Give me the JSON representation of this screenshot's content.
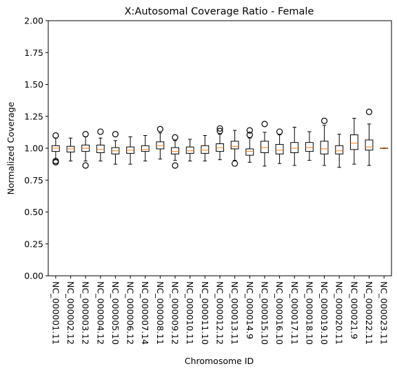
{
  "chart_data": {
    "type": "boxplot",
    "title": "X:Autosomal Coverage Ratio - Female",
    "xlabel": "Chromosome ID",
    "ylabel": "Normalized Coverage",
    "ylim": [
      0,
      2
    ],
    "yticks": [
      "0.00",
      "0.25",
      "0.50",
      "0.75",
      "1.00",
      "1.25",
      "1.50",
      "1.75",
      "2.00"
    ],
    "grid": false,
    "colors": {
      "box": "#000000",
      "median": "#ff7f0e",
      "flier": "#000000"
    },
    "categories": [
      "NC_000001.11",
      "NC_000002.12",
      "NC_000003.12",
      "NC_000004.12",
      "NC_000005.10",
      "NC_000006.12",
      "NC_000007.14",
      "NC_000008.11",
      "NC_000009.12",
      "NC_000010.11",
      "NC_000011.10",
      "NC_000012.12",
      "NC_000013.11",
      "NC_000014.9",
      "NC_000015.10",
      "NC_000016.10",
      "NC_000017.11",
      "NC_000018.10",
      "NC_000019.10",
      "NC_000020.11",
      "NC_000021.9",
      "NC_000022.11",
      "NC_000023.11"
    ],
    "boxes": [
      {
        "whislo": 0.91,
        "q1": 0.975,
        "med": 1.0,
        "q3": 1.02,
        "whishi": 1.08,
        "fliers": [
          1.1,
          0.9,
          0.89
        ]
      },
      {
        "whislo": 0.9,
        "q1": 0.97,
        "med": 0.995,
        "q3": 1.015,
        "whishi": 1.08,
        "fliers": []
      },
      {
        "whislo": 0.9,
        "q1": 0.975,
        "med": 1.0,
        "q3": 1.025,
        "whishi": 1.09,
        "fliers": [
          1.11,
          0.865
        ]
      },
      {
        "whislo": 0.9,
        "q1": 0.965,
        "med": 0.99,
        "q3": 1.025,
        "whishi": 1.08,
        "fliers": [
          1.13
        ]
      },
      {
        "whislo": 0.875,
        "q1": 0.955,
        "med": 0.98,
        "q3": 1.005,
        "whishi": 1.06,
        "fliers": [
          1.11
        ]
      },
      {
        "whislo": 0.875,
        "q1": 0.96,
        "med": 0.985,
        "q3": 1.01,
        "whishi": 1.09,
        "fliers": []
      },
      {
        "whislo": 0.9,
        "q1": 0.975,
        "med": 0.99,
        "q3": 1.02,
        "whishi": 1.1,
        "fliers": []
      },
      {
        "whislo": 0.915,
        "q1": 0.995,
        "med": 1.02,
        "q3": 1.05,
        "whishi": 1.12,
        "fliers": [
          1.15
        ]
      },
      {
        "whislo": 0.905,
        "q1": 0.955,
        "med": 0.975,
        "q3": 1.005,
        "whishi": 1.06,
        "fliers": [
          1.085,
          0.865
        ]
      },
      {
        "whislo": 0.9,
        "q1": 0.96,
        "med": 0.98,
        "q3": 1.01,
        "whishi": 1.07,
        "fliers": []
      },
      {
        "whislo": 0.9,
        "q1": 0.96,
        "med": 0.985,
        "q3": 1.02,
        "whishi": 1.1,
        "fliers": []
      },
      {
        "whislo": 0.91,
        "q1": 0.975,
        "med": 1.005,
        "q3": 1.035,
        "whishi": 1.11,
        "fliers": [
          1.155,
          1.135
        ]
      },
      {
        "whislo": 0.905,
        "q1": 0.995,
        "med": 1.015,
        "q3": 1.055,
        "whishi": 1.14,
        "fliers": [
          0.88
        ]
      },
      {
        "whislo": 0.89,
        "q1": 0.945,
        "med": 0.975,
        "q3": 0.995,
        "whishi": 1.08,
        "fliers": [
          1.14,
          1.105
        ]
      },
      {
        "whislo": 0.86,
        "q1": 0.965,
        "med": 1.005,
        "q3": 1.055,
        "whishi": 1.125,
        "fliers": [
          1.19
        ]
      },
      {
        "whislo": 0.88,
        "q1": 0.955,
        "med": 0.985,
        "q3": 1.03,
        "whishi": 1.105,
        "fliers": [
          1.13
        ]
      },
      {
        "whislo": 0.865,
        "q1": 0.965,
        "med": 1.0,
        "q3": 1.045,
        "whishi": 1.165,
        "fliers": []
      },
      {
        "whislo": 0.905,
        "q1": 0.975,
        "med": 1.005,
        "q3": 1.045,
        "whishi": 1.13,
        "fliers": []
      },
      {
        "whislo": 0.865,
        "q1": 0.955,
        "med": 0.995,
        "q3": 1.055,
        "whishi": 1.18,
        "fliers": [
          1.215
        ]
      },
      {
        "whislo": 0.85,
        "q1": 0.955,
        "med": 0.98,
        "q3": 1.02,
        "whishi": 1.11,
        "fliers": []
      },
      {
        "whislo": 0.875,
        "q1": 0.99,
        "med": 1.04,
        "q3": 1.105,
        "whishi": 1.235,
        "fliers": []
      },
      {
        "whislo": 0.865,
        "q1": 0.985,
        "med": 1.01,
        "q3": 1.065,
        "whishi": 1.19,
        "fliers": [
          1.285
        ]
      },
      {
        "whislo": 0.998,
        "q1": 0.999,
        "med": 1.0,
        "q3": 1.001,
        "whishi": 1.002,
        "fliers": []
      }
    ]
  }
}
